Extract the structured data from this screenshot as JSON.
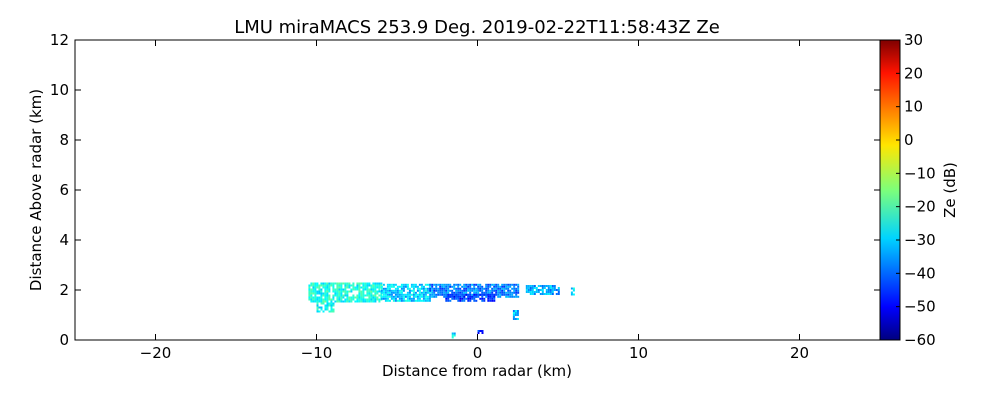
{
  "chart_data": {
    "type": "heatmap",
    "title": "LMU miraMACS 253.9 Deg. 2019-02-22T11:58:43Z  Ze",
    "xlabel": "Distance from radar (km)",
    "ylabel": "Distance Above radar  (km)",
    "xlim": [
      -25,
      25
    ],
    "ylim": [
      0,
      12
    ],
    "x_ticks": [
      -20,
      -10,
      0,
      10,
      20
    ],
    "x_tick_labels": [
      "−20",
      "−10",
      "0",
      "10",
      "20"
    ],
    "y_ticks": [
      0,
      2,
      4,
      6,
      8,
      10,
      12
    ],
    "y_tick_labels": [
      "0",
      "2",
      "4",
      "6",
      "8",
      "10",
      "12"
    ],
    "grid": false,
    "colorbar": {
      "label": "Ze (dB)",
      "range": [
        -60,
        30
      ],
      "ticks": [
        30,
        20,
        10,
        0,
        -10,
        -20,
        -30,
        -40,
        -50,
        -60
      ],
      "tick_labels": [
        "30",
        "20",
        "10",
        "0",
        "−10",
        "−20",
        "−30",
        "−40",
        "−50",
        "−60"
      ],
      "colormap": "jet"
    },
    "echo_regions": [
      {
        "x": [
          -10.5,
          -6.0
        ],
        "y": [
          1.5,
          2.3
        ],
        "ze": -24
      },
      {
        "x": [
          -6.0,
          -3.0
        ],
        "y": [
          1.55,
          2.25
        ],
        "ze": -30
      },
      {
        "x": [
          -3.0,
          2.5
        ],
        "y": [
          1.75,
          2.25
        ],
        "ze": -38
      },
      {
        "x": [
          -2.0,
          1.0
        ],
        "y": [
          1.55,
          1.85
        ],
        "ze": -44
      },
      {
        "x": [
          3.0,
          5.0
        ],
        "y": [
          1.8,
          2.2
        ],
        "ze": -34
      },
      {
        "x": [
          5.8,
          6.0
        ],
        "y": [
          1.8,
          2.1
        ],
        "ze": -30
      },
      {
        "x": [
          -10.0,
          -9.0
        ],
        "y": [
          1.1,
          1.5
        ],
        "ze": -26
      },
      {
        "x": [
          2.2,
          2.5
        ],
        "y": [
          0.8,
          1.2
        ],
        "ze": -32
      },
      {
        "x": [
          -1.6,
          -1.4
        ],
        "y": [
          0.1,
          0.3
        ],
        "ze": -30
      },
      {
        "x": [
          0.0,
          0.3
        ],
        "y": [
          0.25,
          0.4
        ],
        "ze": -45
      }
    ]
  }
}
